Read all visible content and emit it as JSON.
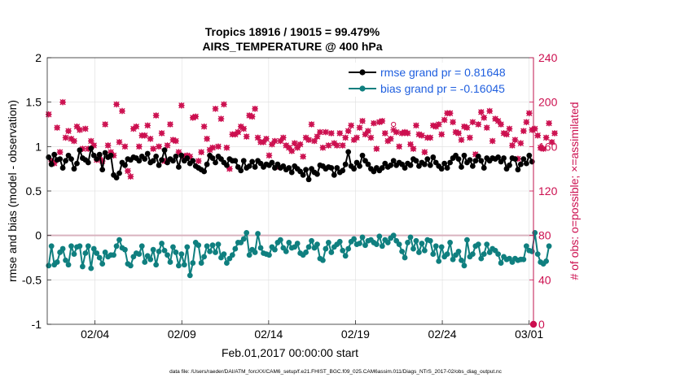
{
  "figure": {
    "title_line1": "Tropics 18916 / 19015 = 99.479%",
    "title_line2": "AIRS_TEMPERATURE @ 400 hPa",
    "ylabel_left": "rmse and bias (model - observation)",
    "ylabel_right": "# of obs: o=possible; ×=assimilated",
    "xlabel": "Feb.01,2017 00:00:00 start",
    "footer": "data file: /Users/raeder/DAI/ATM_forcXX/CAM6_setup/f.e21.FHIST_BGC.f09_025.CAM6assim.011/Diags_NTrS_2017-02/obs_diag_output.nc"
  },
  "colors": {
    "rmse": "#000000",
    "bias": "#0f7f7f",
    "obs": "#cc0f4f",
    "legend_text": "#1f5fdf",
    "zero_line": "#d9b3bf"
  },
  "chart_data": {
    "type": "line",
    "x_unit": "days since Feb.01,2017",
    "xlim": [
      1,
      29
    ],
    "ylim_left": [
      -1,
      2
    ],
    "ylim_right": [
      0,
      240
    ],
    "x_ticks": [
      {
        "value": 3.75,
        "label": "02/04"
      },
      {
        "value": 8.75,
        "label": "02/09"
      },
      {
        "value": 13.75,
        "label": "02/14"
      },
      {
        "value": 18.75,
        "label": "02/19"
      },
      {
        "value": 23.75,
        "label": "02/24"
      },
      {
        "value": 28.75,
        "label": "03/01"
      }
    ],
    "y_ticks_left": [
      {
        "value": -1,
        "label": "-1"
      },
      {
        "value": -0.5,
        "label": "-0.5"
      },
      {
        "value": 0,
        "label": "0"
      },
      {
        "value": 0.5,
        "label": "0.5"
      },
      {
        "value": 1,
        "label": "1"
      },
      {
        "value": 1.5,
        "label": "1.5"
      },
      {
        "value": 2,
        "label": "2"
      }
    ],
    "y_ticks_right": [
      {
        "value": 0,
        "label": "0"
      },
      {
        "value": 40,
        "label": "40"
      },
      {
        "value": 80,
        "label": "80"
      },
      {
        "value": 120,
        "label": "120"
      },
      {
        "value": 160,
        "label": "160"
      },
      {
        "value": 200,
        "label": "200"
      },
      {
        "value": 240,
        "label": "240"
      }
    ],
    "series": [
      {
        "name": "rmse grand pr = 0.81648",
        "key": "rmse",
        "axis": "left",
        "values": [
          0.88,
          0.8,
          0.91,
          0.85,
          0.86,
          0.76,
          0.84,
          0.9,
          0.86,
          0.75,
          0.81,
          0.96,
          0.87,
          0.85,
          0.82,
          0.98,
          0.9,
          0.86,
          0.91,
          0.74,
          0.93,
          0.88,
          0.9,
          0.68,
          0.65,
          0.7,
          0.82,
          0.79,
          0.86,
          0.85,
          0.88,
          0.87,
          0.84,
          0.89,
          0.86,
          0.92,
          0.82,
          0.84,
          0.89,
          0.79,
          0.85,
          0.96,
          0.82,
          0.86,
          0.84,
          0.89,
          0.77,
          0.9,
          0.84,
          0.87,
          0.81,
          0.84,
          0.78,
          0.76,
          0.74,
          0.72,
          0.8,
          0.9,
          0.87,
          0.82,
          0.89,
          0.86,
          0.82,
          0.79,
          0.86,
          0.84,
          0.84,
          0.77,
          0.73,
          0.84,
          0.76,
          0.78,
          0.83,
          0.77,
          0.84,
          0.81,
          0.77,
          0.8,
          0.79,
          0.82,
          0.76,
          0.8,
          0.76,
          0.78,
          0.74,
          0.76,
          0.71,
          0.78,
          0.75,
          0.72,
          0.68,
          0.74,
          0.63,
          0.75,
          0.71,
          0.69,
          0.79,
          0.78,
          0.75,
          0.77,
          0.76,
          0.68,
          0.76,
          0.71,
          0.73,
          0.8,
          0.94,
          0.78,
          0.75,
          0.82,
          0.78,
          0.9,
          0.84,
          0.8,
          0.75,
          0.72,
          0.76,
          0.73,
          0.76,
          0.81,
          0.77,
          0.79,
          0.84,
          0.79,
          0.82,
          0.8,
          0.76,
          0.81,
          0.79,
          0.86,
          0.84,
          0.78,
          0.82,
          0.8,
          0.86,
          0.79,
          0.88,
          0.82,
          0.78,
          0.75,
          0.81,
          0.76,
          0.82,
          0.87,
          0.9,
          0.86,
          0.77,
          0.9,
          0.82,
          0.85,
          0.78,
          0.84,
          0.89,
          0.84,
          0.76,
          0.87,
          0.84,
          0.87,
          0.86,
          0.88,
          0.83,
          0.87,
          0.75,
          0.79,
          0.87,
          0.86,
          0.74,
          0.8,
          0.86,
          0.81,
          0.9,
          0.83
        ]
      },
      {
        "name": "bias grand pr = -0.16045",
        "key": "bias",
        "axis": "left",
        "values": [
          -0.34,
          -0.12,
          -0.33,
          -0.3,
          -0.19,
          -0.15,
          -0.28,
          -0.33,
          -0.12,
          -0.21,
          -0.13,
          -0.12,
          -0.35,
          -0.2,
          -0.12,
          -0.37,
          -0.15,
          -0.2,
          -0.25,
          -0.32,
          -0.19,
          -0.24,
          -0.22,
          -0.22,
          -0.12,
          -0.05,
          -0.14,
          -0.16,
          -0.32,
          -0.34,
          -0.24,
          -0.2,
          -0.21,
          -0.12,
          -0.3,
          -0.23,
          -0.27,
          -0.16,
          -0.33,
          -0.18,
          -0.09,
          -0.17,
          -0.22,
          -0.3,
          -0.13,
          -0.19,
          -0.34,
          -0.21,
          -0.33,
          -0.13,
          -0.45,
          -0.31,
          -0.08,
          -0.11,
          -0.31,
          -0.24,
          -0.12,
          -0.18,
          -0.11,
          -0.19,
          -0.1,
          -0.25,
          -0.21,
          -0.31,
          -0.26,
          -0.22,
          -0.15,
          -0.08,
          -0.08,
          -0.04,
          0.03,
          -0.22,
          -0.16,
          -0.19,
          0.02,
          -0.14,
          -0.2,
          -0.21,
          -0.22,
          -0.13,
          -0.16,
          -0.08,
          -0.05,
          -0.14,
          -0.18,
          -0.08,
          -0.14,
          -0.13,
          -0.09,
          -0.2,
          -0.22,
          -0.19,
          -0.13,
          -0.06,
          -0.14,
          -0.1,
          -0.26,
          -0.28,
          -0.15,
          -0.08,
          -0.19,
          -0.13,
          -0.1,
          -0.07,
          -0.17,
          -0.23,
          -0.15,
          -0.07,
          -0.04,
          -0.1,
          -0.09,
          -0.02,
          -0.11,
          -0.06,
          -0.05,
          -0.08,
          -0.1,
          -0.01,
          -0.12,
          -0.05,
          -0.08,
          -0.03,
          0.0,
          -0.06,
          -0.1,
          -0.18,
          -0.25,
          -0.08,
          -0.02,
          -0.15,
          -0.06,
          -0.19,
          -0.09,
          -0.17,
          -0.05,
          -0.06,
          -0.21,
          -0.12,
          -0.29,
          -0.13,
          -0.24,
          -0.21,
          -0.08,
          -0.27,
          -0.22,
          -0.18,
          -0.28,
          -0.34,
          -0.05,
          -0.24,
          -0.21,
          -0.12,
          -0.1,
          -0.26,
          -0.21,
          -0.1,
          -0.19,
          -0.15,
          -0.17,
          -0.21,
          -0.31,
          -0.24,
          -0.27,
          -0.26,
          -0.3,
          -0.26,
          -0.28,
          -0.27,
          -0.27,
          -0.12,
          -0.17,
          -0.18,
          0.03,
          -0.21,
          -0.3,
          -0.32,
          -0.29,
          -0.12
        ]
      },
      {
        "name": "obs_possible",
        "key": "obs",
        "axis": "right",
        "marker": "o",
        "values": [
          189,
          147,
          145,
          177,
          155,
          200,
          168,
          174,
          167,
          165,
          178,
          175,
          158,
          176,
          158,
          165,
          161,
          148,
          150,
          147,
          180,
          161,
          155,
          152,
          198,
          164,
          192,
          160,
          138,
          133,
          176,
          178,
          160,
          170,
          170,
          179,
          167,
          158,
          188,
          160,
          172,
          147,
          161,
          180,
          166,
          165,
          155,
          197,
          151,
          152,
          151,
          186,
          187,
          147,
          155,
          178,
          167,
          157,
          159,
          194,
          160,
          185,
          198,
          159,
          140,
          171,
          171,
          173,
          178,
          176,
          169,
          188,
          187,
          194,
          168,
          164,
          164,
          167,
          152,
          162,
          165,
          142,
          165,
          168,
          161,
          159,
          156,
          163,
          159,
          162,
          151,
          168,
          166,
          180,
          165,
          169,
          173,
          159,
          173,
          161,
          172,
          163,
          161,
          172,
          161,
          168,
          174,
          179,
          166,
          168,
          177,
          183,
          171,
          174,
          168,
          181,
          158,
          182,
          183,
          172,
          165,
          167,
          180,
          173,
          160,
          172,
          173,
          172,
          162,
          158,
          179,
          171,
          170,
          155,
          168,
          168,
          179,
          178,
          180,
          171,
          184,
          190,
          190,
          182,
          173,
          172,
          166,
          178,
          177,
          168,
          182,
          153,
          180,
          191,
          186,
          177,
          192,
          165,
          185,
          183,
          180,
          172,
          171,
          176,
          161,
          166,
          149,
          163,
          174,
          182,
          190,
          175,
          176,
          170,
          159,
          158,
          168,
          181,
          164,
          172
        ]
      },
      {
        "name": "obs_assimilated",
        "key": "obs_assim",
        "axis": "right",
        "marker": "x",
        "values": [
          189,
          147,
          145,
          177,
          155,
          200,
          168,
          174,
          167,
          165,
          178,
          175,
          158,
          176,
          158,
          165,
          161,
          148,
          150,
          147,
          180,
          161,
          155,
          152,
          198,
          164,
          192,
          160,
          138,
          133,
          176,
          178,
          160,
          170,
          170,
          179,
          167,
          158,
          188,
          160,
          172,
          147,
          161,
          180,
          166,
          165,
          155,
          197,
          151,
          152,
          151,
          186,
          187,
          147,
          155,
          178,
          167,
          157,
          159,
          194,
          160,
          185,
          198,
          159,
          140,
          171,
          171,
          173,
          178,
          176,
          169,
          188,
          187,
          194,
          168,
          164,
          164,
          167,
          152,
          162,
          165,
          142,
          165,
          168,
          161,
          159,
          156,
          163,
          159,
          162,
          151,
          168,
          166,
          180,
          165,
          169,
          173,
          159,
          173,
          161,
          172,
          163,
          161,
          172,
          161,
          168,
          174,
          179,
          166,
          168,
          177,
          183,
          171,
          174,
          168,
          181,
          158,
          182,
          183,
          172,
          165,
          167,
          175,
          173,
          160,
          172,
          173,
          172,
          162,
          158,
          179,
          171,
          170,
          155,
          168,
          168,
          179,
          178,
          180,
          171,
          184,
          190,
          190,
          182,
          173,
          172,
          166,
          178,
          177,
          168,
          182,
          153,
          180,
          191,
          186,
          177,
          192,
          165,
          185,
          183,
          180,
          172,
          171,
          176,
          161,
          166,
          149,
          163,
          174,
          182,
          190,
          175,
          176,
          170,
          159,
          158,
          168,
          181,
          164,
          172
        ]
      }
    ],
    "end_marker": {
      "x": 29,
      "right_value": 0
    }
  }
}
